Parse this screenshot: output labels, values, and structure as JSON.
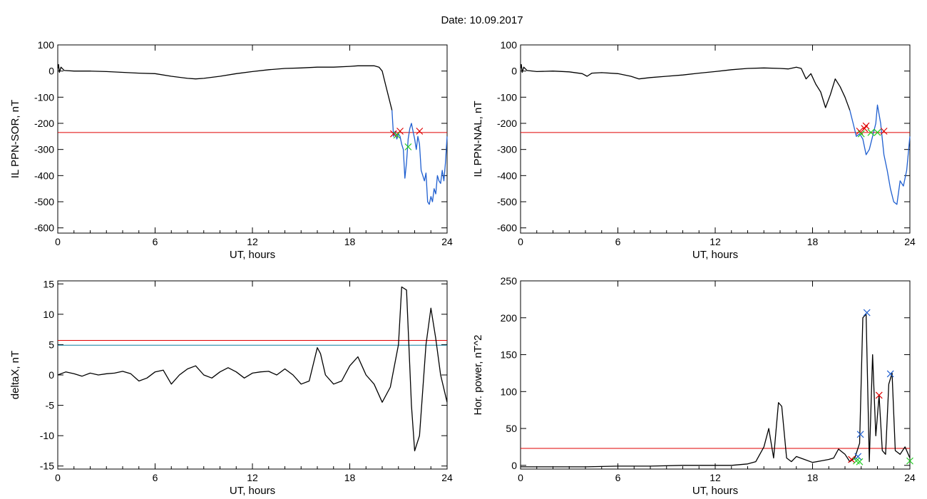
{
  "figure": {
    "title": "Date:  10.09.2017"
  },
  "colors": {
    "red": "#e00000",
    "green": "#22cc22",
    "blue": "#1f5fd0",
    "teal": "#0f7f9f",
    "black": "#000000"
  },
  "chart_data": [
    {
      "id": "ppn_sor",
      "type": "line",
      "xlabel": "UT, hours",
      "ylabel": "IL PPN-SOR, nT",
      "xlim": [
        0,
        24
      ],
      "ylim": [
        -620,
        100
      ],
      "xticks": [
        0,
        6,
        12,
        18,
        24
      ],
      "yticks": [
        100,
        0,
        -100,
        -200,
        -300,
        -400,
        -500,
        -600
      ],
      "grid": false,
      "series": [
        {
          "color": "black",
          "x": [
            0,
            0.05,
            0.1,
            0.2,
            0.4,
            1,
            2,
            3,
            4,
            5,
            6,
            7,
            8,
            8.5,
            9,
            10,
            11,
            12,
            13,
            14,
            15,
            16,
            17,
            18,
            18.5,
            19,
            19.5,
            19.8,
            20.0,
            20.2,
            20.4,
            20.6
          ],
          "y": [
            10,
            25,
            -5,
            15,
            2,
            0,
            0,
            -2,
            -5,
            -8,
            -10,
            -20,
            -28,
            -30,
            -28,
            -20,
            -10,
            -2,
            5,
            10,
            12,
            15,
            15,
            18,
            20,
            20,
            20,
            15,
            0,
            -50,
            -100,
            -150
          ]
        },
        {
          "color": "blue",
          "x": [
            20.6,
            20.7,
            20.8,
            20.9,
            21.0,
            21.1,
            21.2,
            21.3,
            21.4,
            21.5,
            21.6,
            21.7,
            21.8,
            21.9,
            22.0,
            22.1,
            22.2,
            22.3,
            22.4,
            22.5,
            22.6,
            22.7,
            22.8,
            22.9,
            23.0,
            23.1,
            23.2,
            23.3,
            23.4,
            23.5,
            23.6,
            23.7,
            23.8,
            23.9,
            24.0
          ],
          "y": [
            -150,
            -250,
            -230,
            -260,
            -240,
            -250,
            -280,
            -300,
            -410,
            -350,
            -260,
            -220,
            -200,
            -230,
            -260,
            -300,
            -250,
            -280,
            -380,
            -400,
            -420,
            -390,
            -500,
            -510,
            -480,
            -500,
            -450,
            -470,
            -400,
            -420,
            -430,
            -380,
            -420,
            -350,
            -250
          ]
        }
      ],
      "hlines": [
        {
          "y": -235,
          "color": "red"
        }
      ],
      "markers": [
        {
          "x": 20.7,
          "y": -240,
          "color": "red"
        },
        {
          "x": 21.1,
          "y": -230,
          "color": "red"
        },
        {
          "x": 22.3,
          "y": -230,
          "color": "red"
        },
        {
          "x": 20.9,
          "y": -245,
          "color": "green"
        },
        {
          "x": 21.6,
          "y": -290,
          "color": "green"
        }
      ]
    },
    {
      "id": "ppn_nal",
      "type": "line",
      "xlabel": "UT, hours",
      "ylabel": "IL PPN-NAL, nT",
      "xlim": [
        0,
        24
      ],
      "ylim": [
        -620,
        100
      ],
      "xticks": [
        0,
        6,
        12,
        18,
        24
      ],
      "yticks": [
        100,
        0,
        -100,
        -200,
        -300,
        -400,
        -500,
        -600
      ],
      "grid": false,
      "series": [
        {
          "color": "black",
          "x": [
            0,
            0.05,
            0.1,
            0.2,
            0.4,
            1,
            2,
            3,
            3.8,
            4.1,
            4.4,
            5,
            6,
            6.8,
            7.3,
            8,
            9,
            10,
            11,
            12,
            13,
            14,
            15,
            16,
            16.5,
            17.0,
            17.3,
            17.6,
            17.9,
            18.2,
            18.5,
            18.8,
            19.1,
            19.4,
            19.7,
            20.0,
            20.3
          ],
          "y": [
            10,
            25,
            -5,
            15,
            2,
            -2,
            0,
            -3,
            -10,
            -20,
            -8,
            -6,
            -10,
            -20,
            -30,
            -25,
            -20,
            -15,
            -8,
            -2,
            5,
            10,
            12,
            10,
            8,
            15,
            10,
            -30,
            -10,
            -50,
            -80,
            -140,
            -90,
            -30,
            -60,
            -100,
            -150
          ]
        },
        {
          "color": "blue",
          "x": [
            20.3,
            20.5,
            20.7,
            20.9,
            21.1,
            21.3,
            21.5,
            21.7,
            21.9,
            22.0,
            22.2,
            22.4,
            22.6,
            22.8,
            23.0,
            23.2,
            23.4,
            23.6,
            23.8,
            24.0
          ],
          "y": [
            -150,
            -200,
            -250,
            -240,
            -260,
            -320,
            -300,
            -250,
            -200,
            -130,
            -200,
            -320,
            -380,
            -450,
            -500,
            -510,
            -420,
            -440,
            -380,
            -250
          ]
        }
      ],
      "hlines": [
        {
          "y": -235,
          "color": "red"
        }
      ],
      "markers": [
        {
          "x": 20.9,
          "y": -230,
          "color": "red"
        },
        {
          "x": 21.2,
          "y": -220,
          "color": "red"
        },
        {
          "x": 21.3,
          "y": -210,
          "color": "red"
        },
        {
          "x": 22.4,
          "y": -230,
          "color": "red"
        },
        {
          "x": 21.0,
          "y": -240,
          "color": "green"
        },
        {
          "x": 21.6,
          "y": -235,
          "color": "green"
        },
        {
          "x": 22.0,
          "y": -235,
          "color": "green"
        }
      ]
    },
    {
      "id": "deltax",
      "type": "line",
      "xlabel": "UT, hours",
      "ylabel": "deltaX, nT",
      "xlim": [
        0,
        24
      ],
      "ylim": [
        -15.5,
        15.5
      ],
      "xticks": [
        0,
        6,
        12,
        18,
        24
      ],
      "yticks": [
        15,
        10,
        5,
        0,
        -5,
        -10,
        -15
      ],
      "grid": false,
      "series": [
        {
          "color": "black",
          "x": [
            0,
            0.5,
            1,
            1.5,
            2,
            2.5,
            3,
            3.5,
            4,
            4.5,
            5,
            5.5,
            6,
            6.5,
            7,
            7.5,
            8,
            8.5,
            9,
            9.5,
            10,
            10.5,
            11,
            11.5,
            12,
            12.5,
            13,
            13.5,
            14,
            14.5,
            15,
            15.5,
            16,
            16.2,
            16.5,
            17,
            17.5,
            18,
            18.5,
            19,
            19.5,
            20,
            20.5,
            21,
            21.2,
            21.5,
            21.8,
            22,
            22.3,
            22.7,
            23,
            23.3,
            23.6,
            24
          ],
          "y": [
            0,
            0.5,
            0.2,
            -0.2,
            0.3,
            0,
            0.2,
            0.3,
            0.6,
            0.2,
            -1,
            -0.5,
            0.5,
            0.8,
            -1.5,
            0,
            1,
            1.5,
            0,
            -0.5,
            0.5,
            1.2,
            0.5,
            -0.5,
            0.3,
            0.5,
            0.6,
            0,
            1,
            0,
            -1.5,
            -1,
            4.5,
            3.5,
            0,
            -1.5,
            -1,
            1.5,
            3,
            0,
            -1.5,
            -4.5,
            -2,
            5,
            14.5,
            14,
            -5,
            -12.5,
            -10,
            5,
            11,
            6,
            0,
            -4.5
          ]
        }
      ],
      "hlines": [
        {
          "y": 5.7,
          "color": "red"
        },
        {
          "y": 4.9,
          "color": "teal"
        }
      ],
      "markers": []
    },
    {
      "id": "hor_power",
      "type": "line",
      "xlabel": "UT, hours",
      "ylabel": "Hor. power, nT^2",
      "xlim": [
        0,
        24
      ],
      "ylim": [
        -5,
        250
      ],
      "xticks": [
        0,
        6,
        12,
        18,
        24
      ],
      "yticks": [
        250,
        200,
        150,
        100,
        50,
        0
      ],
      "grid": false,
      "series": [
        {
          "color": "black",
          "x": [
            0,
            2,
            4,
            6,
            8,
            10,
            11,
            12,
            13,
            14,
            14.5,
            15,
            15.3,
            15.6,
            15.9,
            16.1,
            16.4,
            16.7,
            17.0,
            17.5,
            18.0,
            18.5,
            19.0,
            19.3,
            19.6,
            20.0,
            20.3,
            20.6,
            20.9,
            21.1,
            21.3,
            21.5,
            21.7,
            21.9,
            22.1,
            22.3,
            22.5,
            22.7,
            22.9,
            23.1,
            23.4,
            23.7,
            24.0
          ],
          "y": [
            -2,
            -2,
            -2,
            -1,
            -1,
            0,
            0,
            0,
            0,
            2,
            5,
            25,
            50,
            10,
            85,
            80,
            10,
            5,
            12,
            8,
            4,
            6,
            8,
            10,
            22,
            15,
            5,
            10,
            30,
            200,
            205,
            5,
            150,
            40,
            95,
            20,
            15,
            110,
            125,
            20,
            15,
            25,
            10
          ]
        }
      ],
      "hlines": [
        {
          "y": 23,
          "color": "red"
        }
      ],
      "markers": [
        {
          "x": 21.35,
          "y": 207,
          "color": "blue"
        },
        {
          "x": 20.95,
          "y": 42,
          "color": "blue"
        },
        {
          "x": 20.8,
          "y": 12,
          "color": "blue"
        },
        {
          "x": 22.8,
          "y": 124,
          "color": "blue"
        },
        {
          "x": 22.1,
          "y": 95,
          "color": "red"
        },
        {
          "x": 20.4,
          "y": 8,
          "color": "red"
        },
        {
          "x": 20.7,
          "y": 6,
          "color": "green"
        },
        {
          "x": 20.9,
          "y": 5,
          "color": "green"
        },
        {
          "x": 24.0,
          "y": 6,
          "color": "green"
        }
      ]
    }
  ]
}
